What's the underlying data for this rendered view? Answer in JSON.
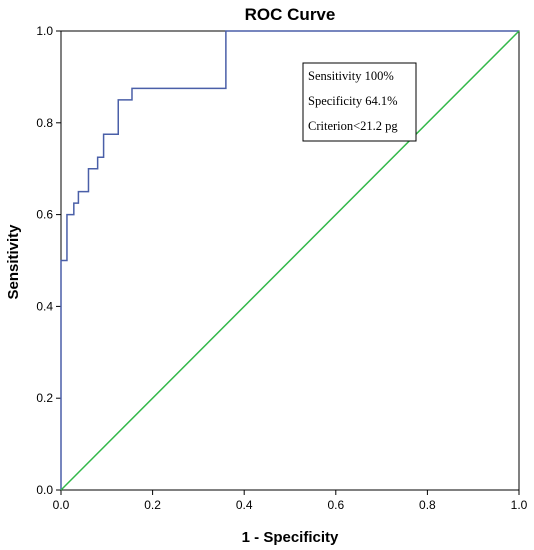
{
  "chart_data": {
    "type": "line",
    "title": "ROC Curve",
    "xlabel": "1 - Specificity",
    "ylabel": "Sensitivity",
    "xlim": [
      0.0,
      1.0
    ],
    "ylim": [
      0.0,
      1.0
    ],
    "x_ticks": [
      "0.0",
      "0.2",
      "0.4",
      "0.6",
      "0.8",
      "1.0"
    ],
    "y_ticks": [
      "0.0",
      "0.2",
      "0.4",
      "0.6",
      "0.8",
      "1.0"
    ],
    "grid": false,
    "series": [
      {
        "color": "#4a5fa8",
        "style": "step",
        "points": [
          [
            0.0,
            0.0
          ],
          [
            0.0,
            0.5
          ],
          [
            0.013,
            0.5
          ],
          [
            0.013,
            0.6
          ],
          [
            0.028,
            0.6
          ],
          [
            0.028,
            0.625
          ],
          [
            0.038,
            0.625
          ],
          [
            0.038,
            0.65
          ],
          [
            0.06,
            0.65
          ],
          [
            0.06,
            0.7
          ],
          [
            0.08,
            0.7
          ],
          [
            0.08,
            0.725
          ],
          [
            0.093,
            0.725
          ],
          [
            0.093,
            0.775
          ],
          [
            0.125,
            0.775
          ],
          [
            0.125,
            0.85
          ],
          [
            0.155,
            0.85
          ],
          [
            0.155,
            0.875
          ],
          [
            0.36,
            0.875
          ],
          [
            0.36,
            1.0
          ],
          [
            1.0,
            1.0
          ]
        ]
      },
      {
        "color": "#33b84a",
        "style": "line",
        "points": [
          [
            0.0,
            0.0
          ],
          [
            1.0,
            1.0
          ]
        ]
      }
    ],
    "annotations": [
      "Sensitivity 100%",
      "Specificity 64.1%",
      "Criterion<21.2 pg"
    ]
  }
}
